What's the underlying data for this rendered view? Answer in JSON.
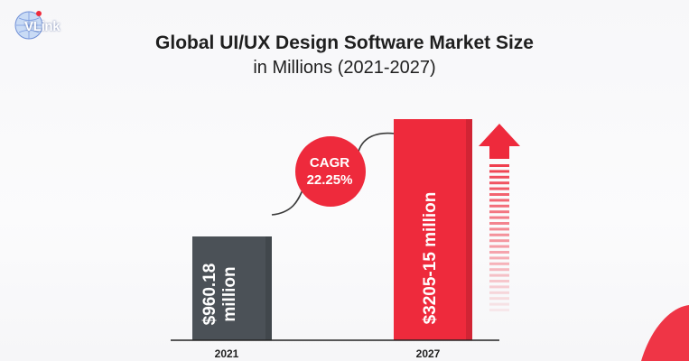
{
  "logo": {
    "text": "VLink",
    "icon": "globe-icon"
  },
  "chart_data": {
    "type": "bar",
    "title": "Global UI/UX Design Software Market Size",
    "subtitle": "in Millions (2021-2027)",
    "categories": [
      "2021",
      "2027"
    ],
    "values": [
      960.18,
      3205.15
    ],
    "bar_labels": [
      [
        "$960.18",
        "million"
      ],
      [
        "$3205-15 million"
      ]
    ],
    "annotation": {
      "line1": "CAGR",
      "line2": "22.25%"
    },
    "ylim": [
      0,
      3300
    ],
    "grid": false,
    "legend": "none",
    "xlabel": "",
    "ylabel": ""
  },
  "colors": {
    "bar_2021": "#4b5157",
    "bar_2027": "#ee2a3c",
    "accent": "#ee2a3c",
    "axis": "#222222",
    "connector": "#3a3a3a"
  },
  "icons": [
    "up-arrow-icon"
  ]
}
